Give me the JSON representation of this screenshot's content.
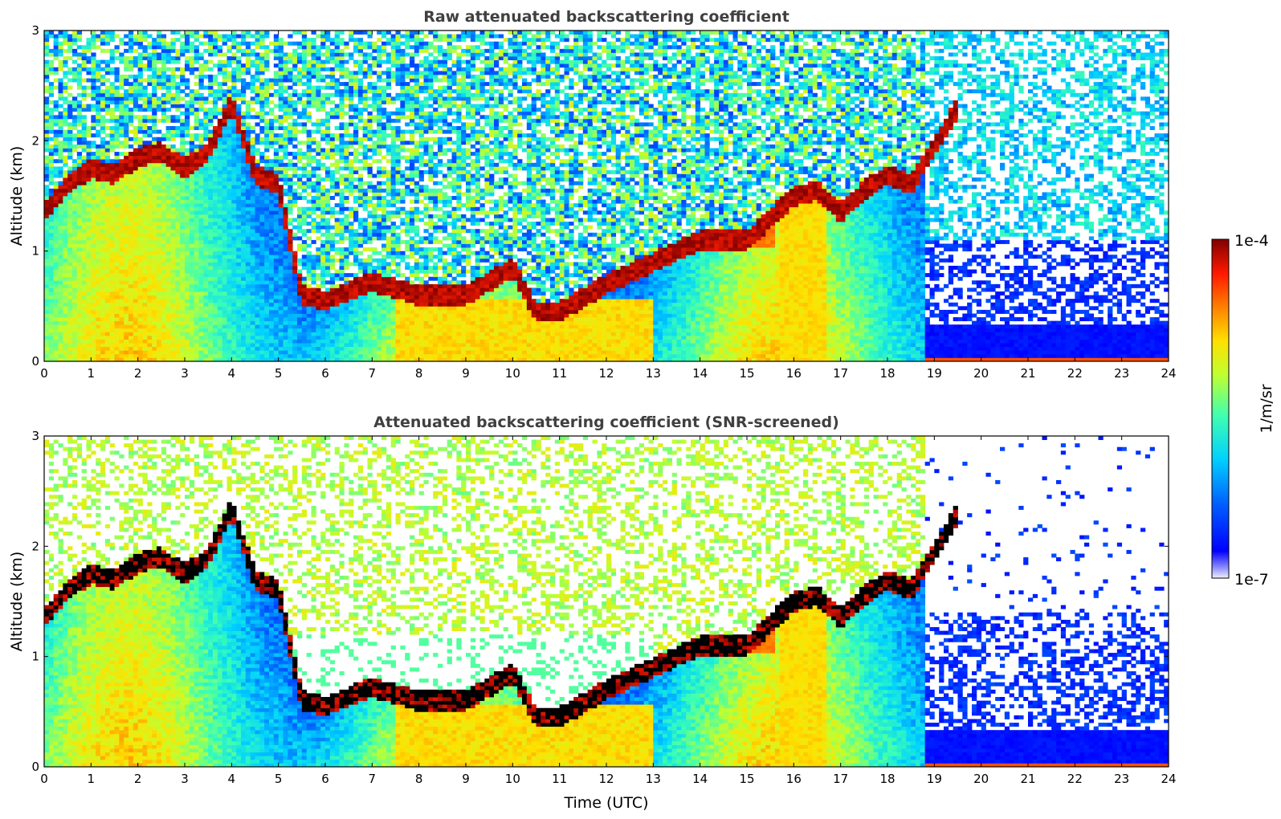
{
  "figure": {
    "xlabel": "Time (UTC)"
  },
  "colorbar": {
    "label": "1/m/sr",
    "max_label": "1e-4",
    "min_label": "1e-7",
    "colormap": "jet",
    "scale": "log",
    "range": [
      1e-07,
      0.0001
    ]
  },
  "chart_data": [
    {
      "type": "heatmap",
      "title": "Raw attenuated backscattering coefficient",
      "xlabel": "",
      "ylabel": "Altitude (km)",
      "xlim": [
        0,
        24
      ],
      "ylim": [
        0,
        3
      ],
      "x_ticks": [
        "0",
        "1",
        "2",
        "3",
        "4",
        "5",
        "6",
        "7",
        "8",
        "9",
        "10",
        "11",
        "12",
        "13",
        "14",
        "15",
        "16",
        "17",
        "18",
        "19",
        "20",
        "21",
        "22",
        "23",
        "24"
      ],
      "y_ticks": [
        "0",
        "1",
        "2",
        "3"
      ],
      "snr_screened": false,
      "cloud_layer": {
        "description_points_time_hours": [
          0,
          0.5,
          1,
          1.5,
          2,
          2.5,
          3,
          3.5,
          4,
          4.5,
          5,
          5.5,
          6,
          7,
          8,
          9,
          10,
          10.5,
          11,
          12,
          13,
          14,
          15,
          16,
          16.5,
          17,
          17.5,
          18,
          18.5,
          19,
          19.5
        ],
        "altitude_km": [
          1.35,
          1.6,
          1.75,
          1.7,
          1.85,
          1.9,
          1.75,
          1.9,
          2.35,
          1.7,
          1.6,
          0.6,
          0.55,
          0.72,
          0.6,
          0.6,
          0.85,
          0.45,
          0.45,
          0.7,
          0.9,
          1.1,
          1.1,
          1.5,
          1.55,
          1.35,
          1.55,
          1.7,
          1.6,
          1.95,
          2.3
        ]
      }
    },
    {
      "type": "heatmap",
      "title": "Attenuated backscattering coefficient (SNR-screened)",
      "xlabel": "Time (UTC)",
      "ylabel": "Altitude (km)",
      "xlim": [
        0,
        24
      ],
      "ylim": [
        0,
        3
      ],
      "x_ticks": [
        "0",
        "1",
        "2",
        "3",
        "4",
        "5",
        "6",
        "7",
        "8",
        "9",
        "10",
        "11",
        "12",
        "13",
        "14",
        "15",
        "16",
        "17",
        "18",
        "19",
        "20",
        "21",
        "22",
        "23",
        "24"
      ],
      "y_ticks": [
        "0",
        "1",
        "2",
        "3"
      ],
      "snr_screened": true
    }
  ]
}
